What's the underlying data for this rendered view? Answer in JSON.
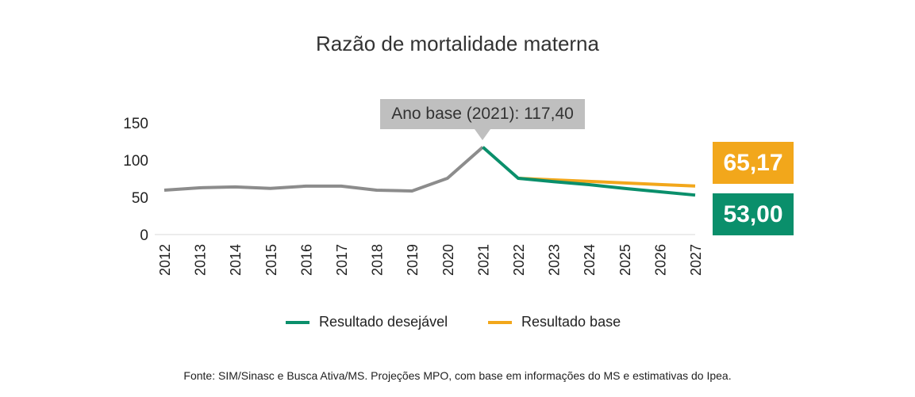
{
  "chart_data": {
    "type": "line",
    "title": "Razão de mortalidade materna",
    "categories": [
      "2012",
      "2013",
      "2014",
      "2015",
      "2016",
      "2017",
      "2018",
      "2019",
      "2020",
      "2021",
      "2022",
      "2023",
      "2024",
      "2025",
      "2026",
      "2027"
    ],
    "ylim": [
      0,
      150
    ],
    "yticks": [
      "0",
      "50",
      "100",
      "150"
    ],
    "grid": false,
    "legend_position": "bottom",
    "series": [
      {
        "values": [
          59.6,
          62.8,
          64.0,
          62.0,
          65.0,
          65.0,
          59.6,
          58.5,
          75.5,
          117.4,
          null,
          null,
          null,
          null,
          null,
          null
        ],
        "color": "#8c8c8c"
      },
      {
        "name": "Resultado base",
        "values": [
          null,
          null,
          null,
          null,
          null,
          null,
          null,
          null,
          null,
          null,
          75.5,
          73.4,
          71.4,
          69.3,
          67.2,
          65.17
        ],
        "color": "#f2a71b"
      },
      {
        "name": "Resultado desejável",
        "values": [
          null,
          null,
          null,
          null,
          null,
          null,
          null,
          null,
          null,
          117.4,
          75.5,
          71.0,
          67.0,
          62.0,
          57.5,
          53.0
        ],
        "color": "#0a8f6b"
      }
    ],
    "annotations": {
      "base_year": "Ano base (2021): 117,40",
      "base_end": "65,17",
      "desired_end": "53,00"
    },
    "legend": [
      "Resultado desejável",
      "Resultado base"
    ],
    "source": "Fonte: SIM/Sinasc e Busca Ativa/MS. Projeções MPO, com base em informações do MS e estimativas do Ipea."
  }
}
